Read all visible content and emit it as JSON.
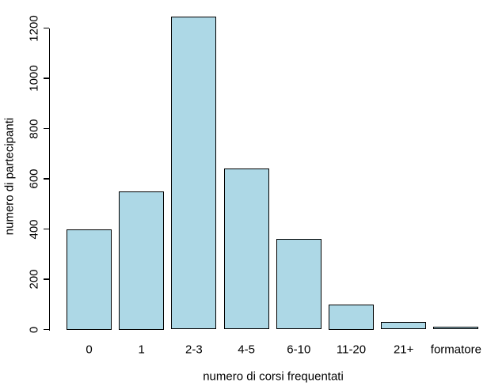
{
  "chart_data": {
    "type": "bar",
    "title": "",
    "categories": [
      "0",
      "1",
      "2-3",
      "4-5",
      "6-10",
      "11-20",
      "21+",
      "formatore"
    ],
    "values": [
      400,
      550,
      1245,
      640,
      360,
      100,
      30,
      10
    ],
    "xlabel": "numero di corsi frequentati",
    "ylabel": "numero di partecipanti",
    "yticks": [
      0,
      200,
      400,
      600,
      800,
      1000,
      1200
    ],
    "ylim": [
      0,
      1260
    ],
    "grid": false,
    "legend": null,
    "colors": {
      "bar_fill": "#ADD8E6",
      "bar_border": "#000000",
      "axis": "#000000",
      "text": "#000000",
      "background": "#FFFFFF"
    }
  }
}
